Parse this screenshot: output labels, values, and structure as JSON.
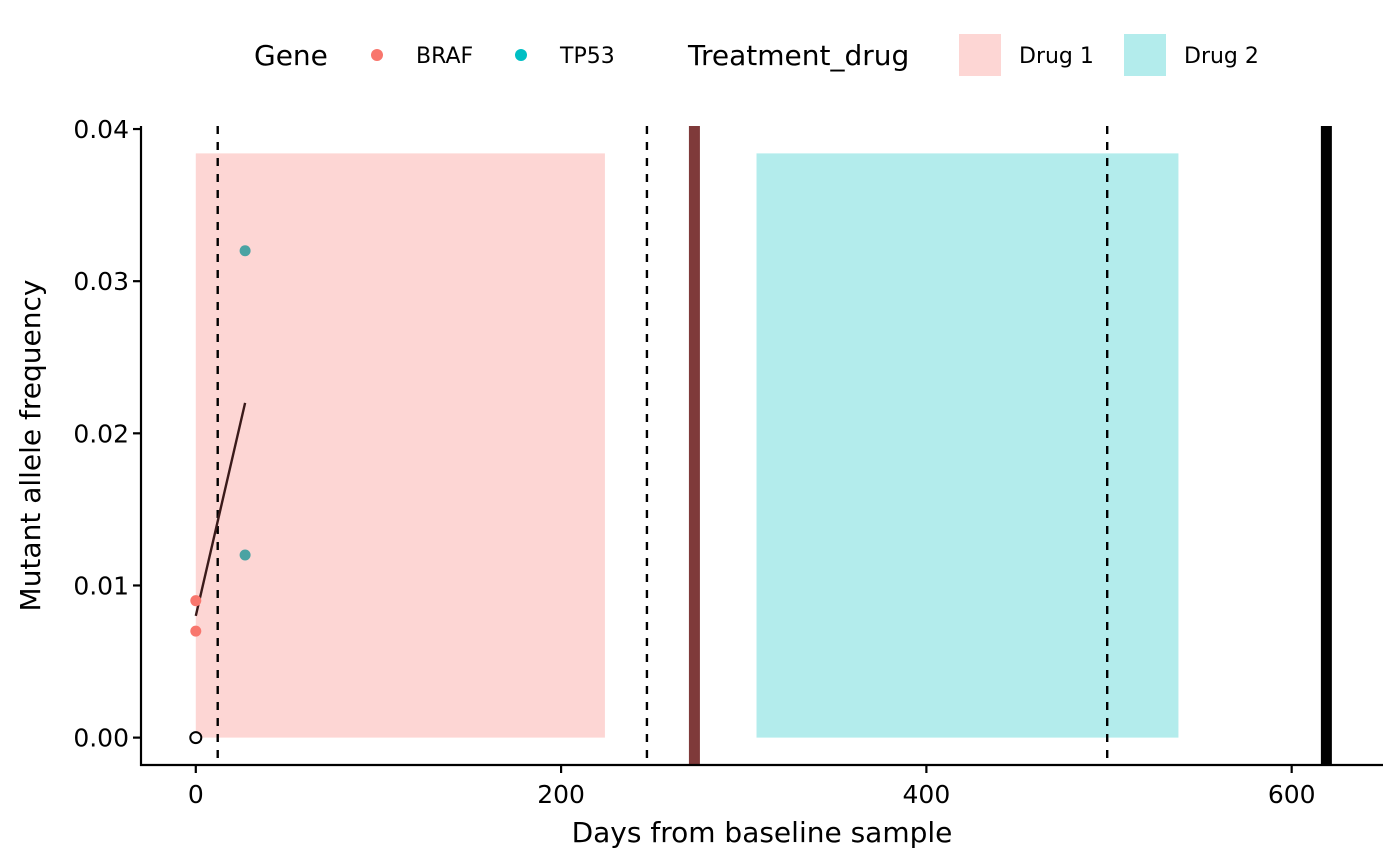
{
  "chart_data": {
    "type": "scatter",
    "title": "",
    "xlabel": "Days from baseline sample",
    "ylabel": "Mutant allele frequency",
    "xlim": [
      -30,
      650
    ],
    "ylim": [
      -0.0018,
      0.0402
    ],
    "x_ticks": [
      0,
      200,
      400,
      600
    ],
    "x_tick_labels": [
      "0",
      "200",
      "400",
      "600"
    ],
    "y_ticks": [
      0,
      0.01,
      0.02,
      0.03,
      0.04
    ],
    "y_tick_labels": [
      "0.00",
      "0.01",
      "0.02",
      "0.03",
      "0.04"
    ],
    "grid": false,
    "legend_position": "top",
    "legend": {
      "gene_title": "Gene",
      "gene_entries": [
        {
          "label": "BRAF",
          "color": "#F8766D"
        },
        {
          "label": "TP53",
          "color": "#00BFC4"
        }
      ],
      "treatment_title": "Treatment_drug",
      "treatment_entries": [
        {
          "label": "Drug 1",
          "color": "#FDD6D4"
        },
        {
          "label": "Drug 2",
          "color": "#B3ECEC"
        }
      ]
    },
    "treatment_periods": [
      {
        "drug": "Drug 1",
        "x_start": 0,
        "x_end": 224,
        "y_top": 0.0384,
        "color": "#FDD6D4"
      },
      {
        "drug": "Drug 2",
        "x_start": 307,
        "x_end": 538,
        "y_top": 0.0384,
        "color": "#B3ECEC"
      }
    ],
    "series": [
      {
        "name": "BRAF",
        "color": "#F8766D",
        "points": [
          {
            "x": 0,
            "y": 0.009
          },
          {
            "x": 0,
            "y": 0.007
          }
        ]
      },
      {
        "name": "TP53",
        "color": "#4AA3A3",
        "points": [
          {
            "x": 27,
            "y": 0.032
          },
          {
            "x": 27,
            "y": 0.012
          }
        ]
      },
      {
        "name": "",
        "marker": "open-circle",
        "color": "#000000",
        "points": [
          {
            "x": 0,
            "y": 0.0
          }
        ]
      }
    ],
    "trend_line": {
      "x": [
        0,
        27
      ],
      "y": [
        0.008,
        0.022
      ],
      "color": "#3A1A1A"
    },
    "dashed_vlines": [
      12,
      247,
      499
    ],
    "solid_vlines": [
      {
        "x": 273,
        "color": "#7F3A3A"
      },
      {
        "x": 619,
        "color": "#000000"
      }
    ]
  }
}
